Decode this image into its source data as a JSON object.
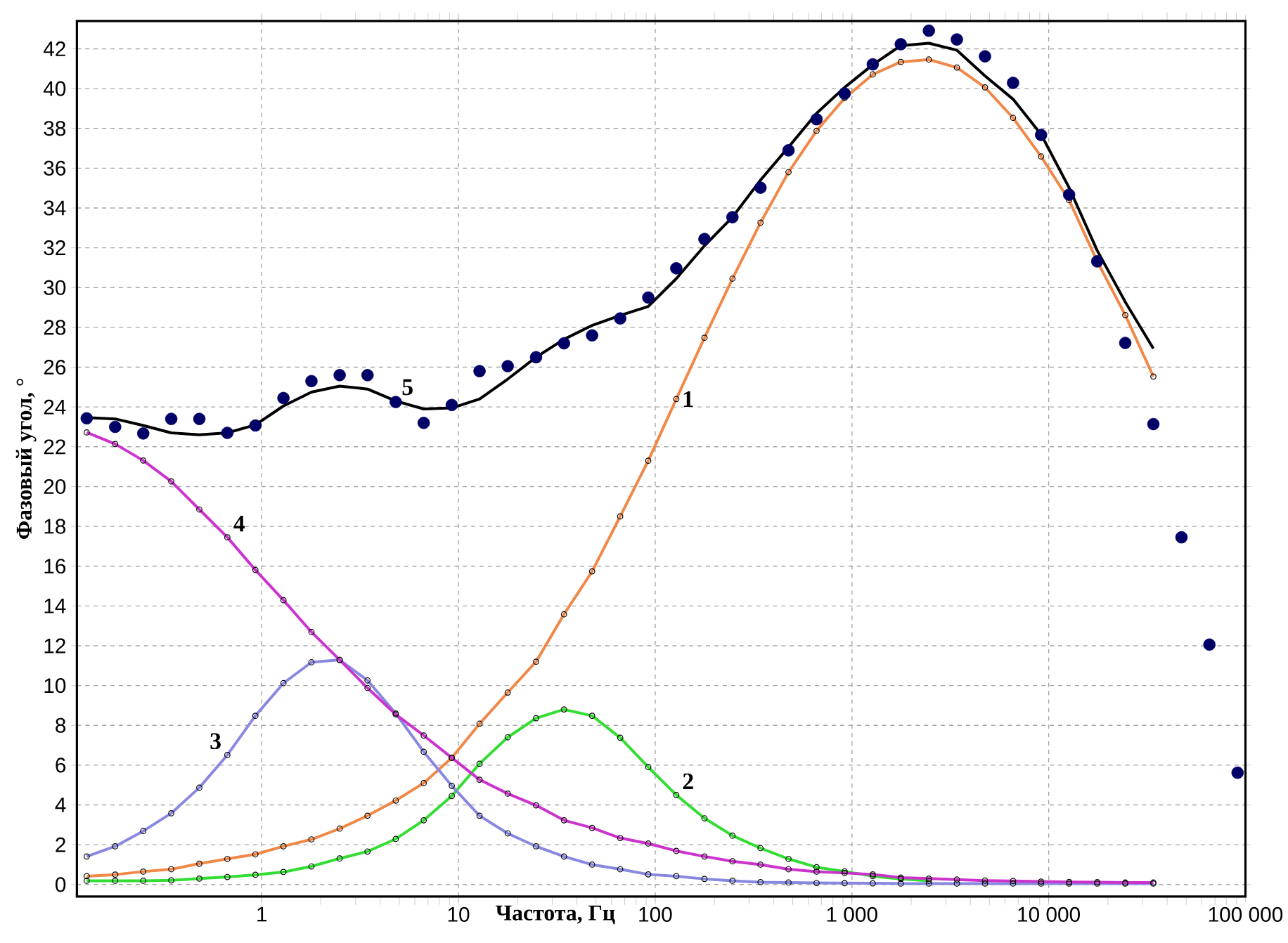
{
  "chart_data": {
    "type": "line",
    "xlabel": "Частота, Гц",
    "ylabel": "Фазовый угол, °",
    "log": "x",
    "grid": true,
    "xlim": [
      0.115,
      100000
    ],
    "ylim": [
      -0.6,
      43.4
    ],
    "xticks": [
      1,
      10,
      100,
      {
        "value": 1000,
        "label": "1 000"
      },
      {
        "value": 10000,
        "label": "10 000"
      },
      {
        "value": 100000,
        "label": "100 000"
      }
    ],
    "yticks": [
      0,
      2,
      4,
      6,
      8,
      10,
      12,
      14,
      16,
      18,
      20,
      22,
      24,
      26,
      28,
      30,
      32,
      34,
      36,
      38,
      40,
      42
    ],
    "x": [
      0.129,
      0.18,
      0.25,
      0.347,
      0.482,
      0.669,
      0.929,
      1.29,
      1.79,
      2.49,
      3.45,
      4.8,
      6.66,
      9.25,
      12.8,
      17.8,
      24.8,
      34.4,
      47.8,
      66.4,
      92.2,
      128,
      178,
      247,
      343,
      476,
      661,
      918,
      1276,
      1771,
      2460,
      3415,
      4745,
      6590,
      9146,
      12700,
      17650,
      24500,
      34040
    ],
    "series": [
      {
        "name": "1",
        "color": "#f08848",
        "marker": "circle",
        "values": [
          0.42,
          0.5,
          0.65,
          0.77,
          1.05,
          1.29,
          1.52,
          1.92,
          2.27,
          2.81,
          3.46,
          4.22,
          5.1,
          6.37,
          8.08,
          9.65,
          11.2,
          13.58,
          15.74,
          18.5,
          21.3,
          24.4,
          27.48,
          30.45,
          33.26,
          35.8,
          37.88,
          39.52,
          40.71,
          41.34,
          41.46,
          41.06,
          40.06,
          38.53,
          36.59,
          34.39,
          31.32,
          28.62,
          25.53
        ]
      },
      {
        "name": "2",
        "color": "#33dd33",
        "marker": "circle",
        "values": [
          0.19,
          0.19,
          0.19,
          0.21,
          0.3,
          0.38,
          0.49,
          0.63,
          0.91,
          1.31,
          1.66,
          2.29,
          3.23,
          4.45,
          6.07,
          7.4,
          8.36,
          8.8,
          8.48,
          7.38,
          5.9,
          4.5,
          3.33,
          2.46,
          1.83,
          1.29,
          0.87,
          0.66,
          0.42,
          0.28,
          0.19,
          null,
          null,
          null,
          null,
          null,
          null,
          null,
          null
        ]
      },
      {
        "name": "3",
        "color": "#8888e0",
        "marker": "circle",
        "values": [
          1.41,
          1.92,
          2.69,
          3.58,
          4.87,
          6.51,
          8.48,
          10.12,
          11.17,
          11.29,
          10.26,
          8.6,
          6.67,
          4.96,
          3.46,
          2.57,
          1.92,
          1.41,
          1.0,
          0.77,
          0.51,
          0.42,
          0.28,
          0.19,
          0.12,
          0.1,
          0.08,
          0.07,
          0.06,
          0.05,
          0.05,
          0.05,
          0.05,
          0.05,
          0.05,
          0.05,
          0.05,
          0.05,
          0.05
        ]
      },
      {
        "name": "4",
        "color": "#cc33cc",
        "marker": "circle",
        "values": [
          22.72,
          22.14,
          21.31,
          20.26,
          18.85,
          17.45,
          15.81,
          14.29,
          12.69,
          11.29,
          9.88,
          8.55,
          7.49,
          6.37,
          5.27,
          4.57,
          3.98,
          3.23,
          2.85,
          2.34,
          2.06,
          1.69,
          1.41,
          1.17,
          1.0,
          0.77,
          0.65,
          0.58,
          0.51,
          0.35,
          0.3,
          0.25,
          0.2,
          0.18,
          0.15,
          0.13,
          0.12,
          0.1,
          0.1
        ]
      },
      {
        "name": "5",
        "color": "#000000",
        "marker": "none",
        "values": [
          23.47,
          23.4,
          23.07,
          22.7,
          22.6,
          22.7,
          23.1,
          24.05,
          24.75,
          25.05,
          24.9,
          24.3,
          23.9,
          23.95,
          24.4,
          25.4,
          26.5,
          27.4,
          28.1,
          28.6,
          29.05,
          30.45,
          32.1,
          33.54,
          35.4,
          37.06,
          38.76,
          40.06,
          41.2,
          42.16,
          42.28,
          41.93,
          40.64,
          39.47,
          37.7,
          35.02,
          31.86,
          29.28,
          26.94
        ]
      },
      {
        "type": "scatter",
        "color": "#000066",
        "marker": "circle",
        "x": [
          0.129,
          0.18,
          0.25,
          0.347,
          0.482,
          0.669,
          0.929,
          1.29,
          1.79,
          2.49,
          3.45,
          4.8,
          6.66,
          9.25,
          12.8,
          17.8,
          24.8,
          34.4,
          47.8,
          66.4,
          92.2,
          128,
          178,
          247,
          343,
          476,
          661,
          918,
          1276,
          1771,
          2460,
          3415,
          4745,
          6590,
          9146,
          12700,
          17650,
          24500,
          34040,
          47300,
          65600,
          91200
        ],
        "values": [
          23.43,
          23.0,
          22.67,
          23.4,
          23.4,
          22.7,
          23.07,
          24.45,
          25.3,
          25.6,
          25.6,
          24.25,
          23.2,
          24.1,
          25.8,
          26.05,
          26.5,
          27.2,
          27.6,
          28.45,
          29.5,
          30.97,
          32.44,
          33.54,
          35.02,
          36.9,
          38.46,
          39.75,
          41.22,
          42.23,
          42.91,
          42.47,
          41.62,
          40.29,
          37.67,
          34.67,
          31.32,
          27.22,
          23.14,
          17.45,
          12.06,
          5.62
        ]
      }
    ]
  }
}
